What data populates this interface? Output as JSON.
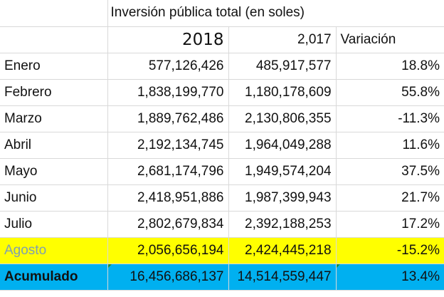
{
  "table": {
    "title": "Inversión pública total (en soles)",
    "headers": {
      "month": "",
      "year_2018": "2018",
      "year_2017": "2,017",
      "variation": "Variación"
    },
    "rows": [
      {
        "month": "Enero",
        "v2018": "577,126,426",
        "v2017": "485,917,577",
        "variation": "18.8%"
      },
      {
        "month": "Febrero",
        "v2018": "1,838,199,770",
        "v2017": "1,180,178,609",
        "variation": "55.8%"
      },
      {
        "month": "Marzo",
        "v2018": "1,889,762,486",
        "v2017": "2,130,806,355",
        "variation": "-11.3%"
      },
      {
        "month": "Abril",
        "v2018": "2,192,134,745",
        "v2017": "1,964,049,288",
        "variation": "11.6%"
      },
      {
        "month": "Mayo",
        "v2018": "2,681,174,796",
        "v2017": "1,949,574,204",
        "variation": "37.5%"
      },
      {
        "month": "Junio",
        "v2018": "2,418,951,886",
        "v2017": "1,987,399,943",
        "variation": "21.7%"
      },
      {
        "month": "Julio",
        "v2018": "2,802,679,834",
        "v2017": "2,392,188,253",
        "variation": "17.2%"
      },
      {
        "month": "Agosto",
        "v2018": "2,056,656,194",
        "v2017": "2,424,445,218",
        "variation": "-15.2%"
      }
    ],
    "total": {
      "month": "Acumulado",
      "v2018": "16,456,686,137",
      "v2017": "14,514,559,447",
      "variation": "13.4%"
    }
  },
  "colors": {
    "highlight_row_bg": "#ffff00",
    "highlight_month_text": "#7f9fb2",
    "total_row_bg": "#00b0f0",
    "gridline": "#d9d9d9",
    "comment_marker": "#1e8c3a"
  }
}
